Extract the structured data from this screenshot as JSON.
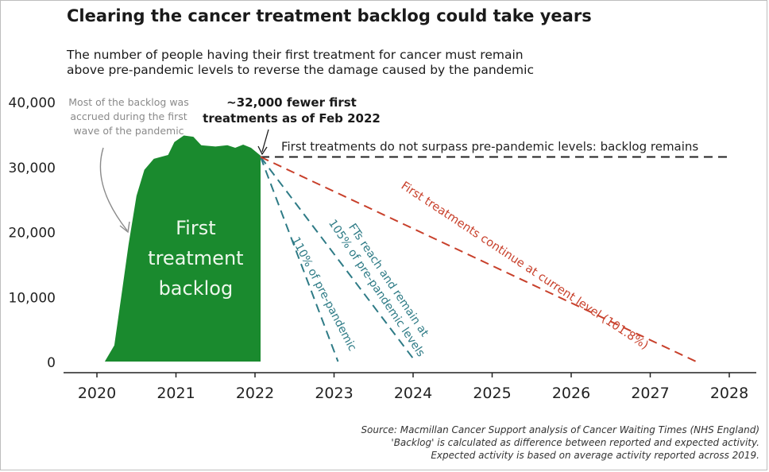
{
  "title": "Clearing the cancer treatment backlog could take years",
  "subtitle_lines": [
    "The number of people having their first treatment for cancer must remain",
    "above pre-pandemic levels to reverse the damage caused by the pandemic"
  ],
  "source_lines": [
    "Source: Macmillan Cancer Support analysis of Cancer Waiting Times (NHS England)",
    "'Backlog' is calculated as difference between reported and expected activity.",
    "Expected activity is based on average activity reported across 2019."
  ],
  "colors": {
    "backlog": "#1a8a2e",
    "backlog_label": "#eef7ec",
    "flat": "#222222",
    "teal": "#2e7b86",
    "red": "#c8402b",
    "axis": "#222222",
    "annotation_grey": "#8a8a8a"
  },
  "chart_data": {
    "type": "area",
    "xlim": [
      2020,
      2028
    ],
    "ylim": [
      0,
      40000
    ],
    "x_ticks": [
      2020,
      2021,
      2022,
      2023,
      2024,
      2025,
      2026,
      2027,
      2028
    ],
    "x_tick_labels": [
      "2020",
      "2021",
      "2022",
      "2023",
      "2024",
      "2025",
      "2026",
      "2027",
      "2028"
    ],
    "y_ticks": [
      0,
      10000,
      20000,
      30000,
      40000
    ],
    "y_tick_labels": [
      "0",
      "10,000",
      "20,000",
      "30,000",
      "40,000"
    ],
    "backlog": {
      "label_lines": [
        "First",
        "treatment",
        "backlog"
      ],
      "points": [
        [
          2020.1,
          0
        ],
        [
          2020.22,
          2500
        ],
        [
          2020.32,
          11000
        ],
        [
          2020.4,
          18000
        ],
        [
          2020.5,
          25500
        ],
        [
          2020.6,
          29500
        ],
        [
          2020.72,
          31200
        ],
        [
          2020.9,
          31800
        ],
        [
          2020.98,
          33800
        ],
        [
          2021.1,
          34800
        ],
        [
          2021.22,
          34600
        ],
        [
          2021.32,
          33300
        ],
        [
          2021.5,
          33100
        ],
        [
          2021.65,
          33300
        ],
        [
          2021.75,
          32900
        ],
        [
          2021.85,
          33400
        ],
        [
          2021.95,
          32900
        ],
        [
          2022.07,
          31700
        ],
        [
          2022.07,
          0
        ]
      ]
    },
    "series": [
      {
        "name": "First treatments do not surpass pre-pandemic levels: backlog remains",
        "style": "flat",
        "x": [
          2022.07,
          2028.0
        ],
        "y": [
          31500,
          31500
        ]
      },
      {
        "name": "110% of pre-pandemic",
        "style": "teal",
        "x": [
          2022.07,
          2023.05
        ],
        "y": [
          31500,
          0
        ]
      },
      {
        "name": "FTs reach and remain at 105% of pre-pandemic levels",
        "label_lines": [
          "FTs reach and remain at",
          "105% of pre-pandemic levels"
        ],
        "style": "teal",
        "x": [
          2022.07,
          2024.03
        ],
        "y": [
          31500,
          0
        ]
      },
      {
        "name": "First treatments continue at current level (101.8%)",
        "style": "red",
        "x": [
          2022.07,
          2027.58
        ],
        "y": [
          31500,
          0
        ]
      }
    ],
    "annotations": {
      "backlog_note_lines": [
        "Most of the backlog was",
        "accrued during the first",
        "wave of the pandemic"
      ],
      "callout_lines": [
        "~32,000 fewer first",
        "treatments as of Feb 2022"
      ]
    }
  }
}
